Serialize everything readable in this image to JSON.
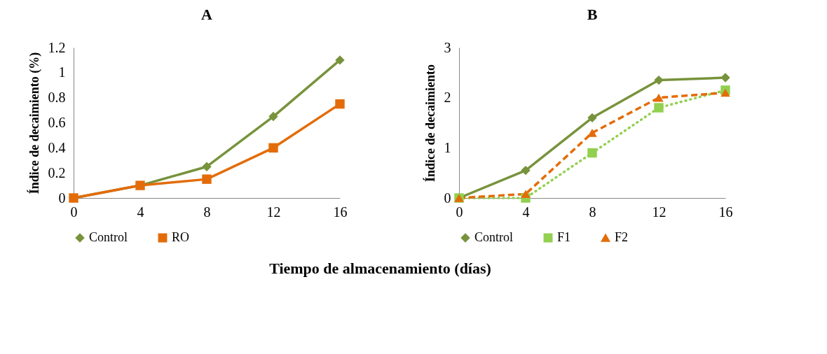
{
  "chart_data": [
    {
      "type": "line",
      "title": "A",
      "xlabel": "Tiempo de almacenamiento (días)",
      "ylabel": "Índice de decaimiento (%)",
      "x": [
        0,
        4,
        8,
        12,
        16
      ],
      "xlim": [
        0,
        16
      ],
      "xticks": [
        0,
        4,
        8,
        12,
        16
      ],
      "ylim": [
        0,
        1.2
      ],
      "yticks": [
        0,
        0.2,
        0.4,
        0.6,
        0.8,
        1,
        1.2
      ],
      "grid": false,
      "legend": "bottom",
      "series": [
        {
          "name": "Control",
          "color": "#77933c",
          "marker": "diamond",
          "line_style": "solid",
          "values": [
            0,
            0.1,
            0.25,
            0.65,
            1.1
          ]
        },
        {
          "name": "RO",
          "color": "#e36c09",
          "marker": "square",
          "line_style": "solid",
          "values": [
            0,
            0.1,
            0.15,
            0.4,
            0.75
          ]
        }
      ]
    },
    {
      "type": "line",
      "title": "B",
      "ylabel": "Índice de decaimiento",
      "x": [
        0,
        4,
        8,
        12,
        16
      ],
      "xlim": [
        0,
        16
      ],
      "xticks": [
        0,
        4,
        8,
        12,
        16
      ],
      "ylim": [
        0,
        3
      ],
      "yticks": [
        0,
        1,
        2,
        3
      ],
      "grid": false,
      "legend": "bottom",
      "series": [
        {
          "name": "Control",
          "color": "#77933c",
          "marker": "diamond",
          "line_style": "solid",
          "values": [
            0,
            0.55,
            1.6,
            2.35,
            2.4
          ]
        },
        {
          "name": "F1",
          "color": "#92d050",
          "marker": "square",
          "line_style": "dotted",
          "values": [
            0,
            0,
            0.9,
            1.8,
            2.15
          ]
        },
        {
          "name": "F2",
          "color": "#e36c09",
          "marker": "triangle",
          "line_style": "dashed",
          "values": [
            0,
            0.08,
            1.3,
            2,
            2.1
          ]
        }
      ]
    }
  ]
}
